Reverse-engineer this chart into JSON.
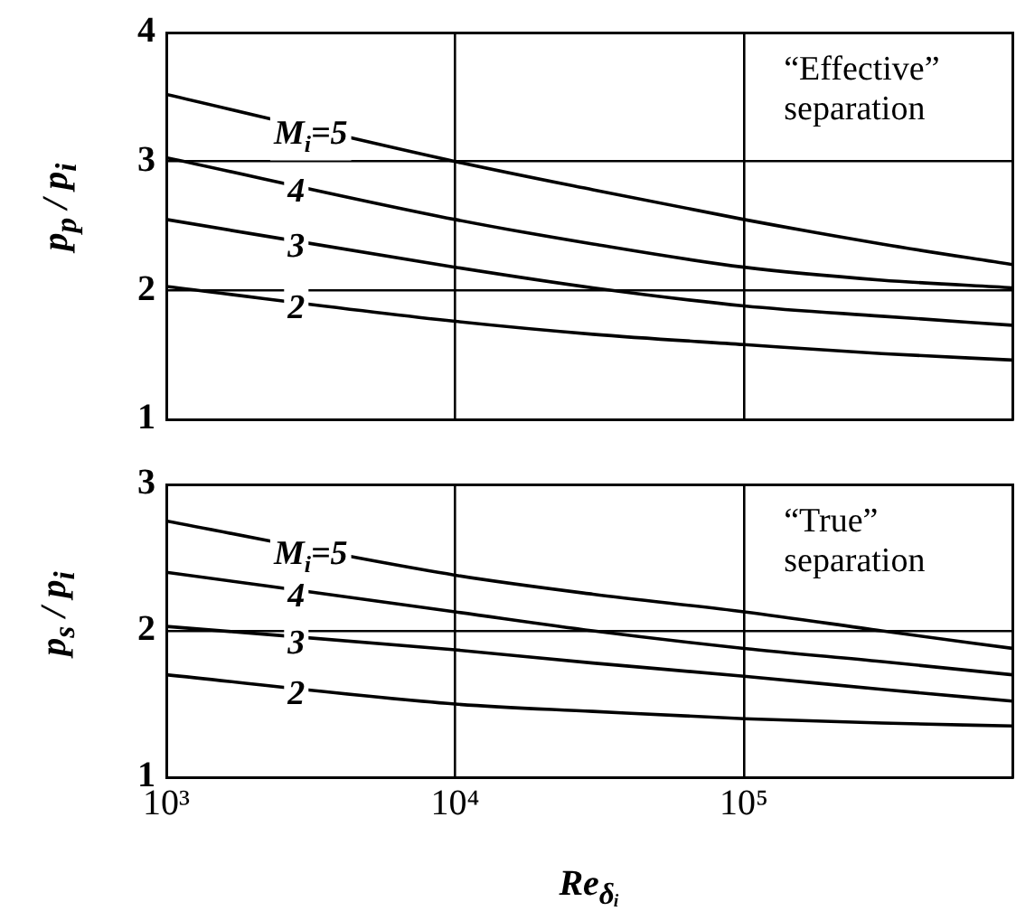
{
  "chart_data": [
    {
      "type": "line",
      "ylabel": "p$_{p}$ / p$_{i}$",
      "annotations": [
        "“Effective” separation"
      ],
      "x": [
        1000,
        10000,
        30000,
        100000,
        300000,
        850000
      ],
      "xlim": [
        1000,
        850000
      ],
      "xticks": [
        {
          "value": 1000,
          "label": null
        },
        {
          "value": 10000,
          "label": null
        },
        {
          "value": 100000,
          "label": null
        }
      ],
      "ylim": [
        1,
        4
      ],
      "yticks": [
        1,
        2,
        3,
        4
      ],
      "log": "x",
      "grid": true,
      "tick_labels": "y",
      "legend": false,
      "marker": "none",
      "line_style": "solid",
      "series": [
        {
          "name": "M$_{i}$=5",
          "color": "#000000",
          "values": [
            3.52,
            3.0,
            2.78,
            2.55,
            2.36,
            2.2
          ]
        },
        {
          "name": "4",
          "color": "#000000",
          "values": [
            3.03,
            2.55,
            2.36,
            2.18,
            2.08,
            2.02
          ]
        },
        {
          "name": "3",
          "color": "#000000",
          "values": [
            2.55,
            2.18,
            2.02,
            1.88,
            1.8,
            1.73
          ]
        },
        {
          "name": "2",
          "color": "#000000",
          "values": [
            2.03,
            1.76,
            1.66,
            1.58,
            1.51,
            1.46
          ]
        }
      ]
    },
    {
      "type": "line",
      "ylabel": "p$_{s}$ / p$_{i}$",
      "xlabel": "Re$_{δᵢ}$",
      "annotations": [
        "“True” separation"
      ],
      "x": [
        1000,
        10000,
        30000,
        100000,
        300000,
        850000
      ],
      "xlim": [
        1000,
        850000
      ],
      "xticks": [
        {
          "value": 1000,
          "label": "10³"
        },
        {
          "value": 10000,
          "label": "10⁴"
        },
        {
          "value": 100000,
          "label": "10⁵"
        }
      ],
      "ylim": [
        1,
        3
      ],
      "yticks": [
        1,
        2,
        3
      ],
      "log": "x",
      "grid": true,
      "legend": false,
      "marker": "none",
      "line_style": "solid",
      "series": [
        {
          "name": "M$_{i}$=5",
          "color": "#000000",
          "values": [
            2.75,
            2.38,
            2.25,
            2.13,
            2.0,
            1.88
          ]
        },
        {
          "name": "4",
          "color": "#000000",
          "values": [
            2.4,
            2.13,
            2.0,
            1.88,
            1.79,
            1.7
          ]
        },
        {
          "name": "3",
          "color": "#000000",
          "values": [
            2.03,
            1.87,
            1.78,
            1.69,
            1.6,
            1.52
          ]
        },
        {
          "name": "2",
          "color": "#000000",
          "values": [
            1.7,
            1.5,
            1.45,
            1.4,
            1.37,
            1.35
          ]
        }
      ]
    }
  ]
}
